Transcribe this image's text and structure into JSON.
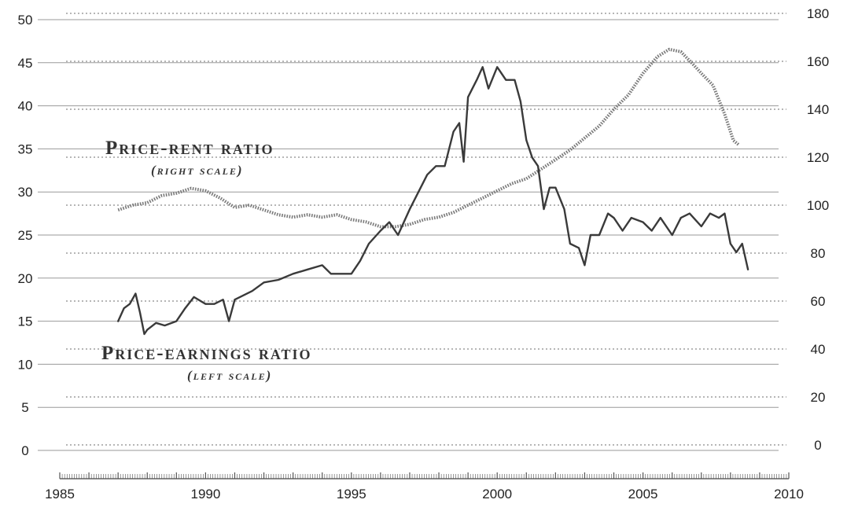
{
  "chart_data": {
    "type": "line",
    "x_axis": {
      "range": [
        1985,
        2010
      ],
      "tick_labels": [
        "1985",
        "1990",
        "1995",
        "2000",
        "2005",
        "2010"
      ]
    },
    "left_axis": {
      "range": [
        0,
        50
      ],
      "tick_labels": [
        "0",
        "5",
        "10",
        "15",
        "20",
        "25",
        "30",
        "35",
        "40",
        "45",
        "50"
      ]
    },
    "right_axis": {
      "range": [
        0,
        180
      ],
      "tick_labels": [
        "0",
        "20",
        "40",
        "60",
        "80",
        "100",
        "120",
        "140",
        "160",
        "180"
      ]
    },
    "grid": true,
    "annotations": [
      {
        "id": "price-rent",
        "title": "Price-rent ratio",
        "subtitle": "(right scale)"
      },
      {
        "id": "price-earnings",
        "title": "Price-earnings ratio",
        "subtitle": "(left scale)"
      }
    ],
    "series": [
      {
        "name": "Price-rent ratio",
        "axis": "right",
        "style": "dotted",
        "color": "#7a7a7a",
        "x": [
          1987.0,
          1987.5,
          1988.0,
          1988.5,
          1989.0,
          1989.5,
          1990.0,
          1990.5,
          1991.0,
          1991.5,
          1992.0,
          1992.5,
          1993.0,
          1993.5,
          1994.0,
          1994.5,
          1995.0,
          1995.5,
          1996.0,
          1996.5,
          1997.0,
          1997.5,
          1998.0,
          1998.5,
          1999.0,
          1999.5,
          2000.0,
          2000.5,
          2001.0,
          2001.5,
          2002.0,
          2002.5,
          2003.0,
          2003.5,
          2004.0,
          2004.5,
          2005.0,
          2005.5,
          2005.9,
          2006.3,
          2006.7,
          2007.0,
          2007.4,
          2007.8,
          2008.1,
          2008.3
        ],
        "values": [
          98,
          100,
          101,
          104,
          105,
          107,
          106,
          103,
          99,
          100,
          98,
          96,
          95,
          96,
          95,
          96,
          94,
          93,
          91,
          91,
          92,
          94,
          95,
          97,
          100,
          103,
          106,
          109,
          111,
          115,
          119,
          123,
          128,
          133,
          140,
          146,
          155,
          162,
          165,
          164,
          159,
          155,
          150,
          138,
          127,
          125
        ]
      },
      {
        "name": "Price-earnings ratio",
        "axis": "left",
        "style": "solid",
        "color": "#3a3a3a",
        "x": [
          1987.0,
          1987.2,
          1987.4,
          1987.6,
          1987.75,
          1987.9,
          1988.0,
          1988.3,
          1988.6,
          1989.0,
          1989.3,
          1989.6,
          1990.0,
          1990.3,
          1990.6,
          1990.8,
          1991.0,
          1991.3,
          1991.6,
          1992.0,
          1992.5,
          1993.0,
          1993.5,
          1994.0,
          1994.3,
          1994.6,
          1995.0,
          1995.3,
          1995.6,
          1996.0,
          1996.3,
          1996.6,
          1997.0,
          1997.3,
          1997.6,
          1997.9,
          1998.2,
          1998.5,
          1998.7,
          1998.85,
          1999.0,
          1999.3,
          1999.5,
          1999.7,
          2000.0,
          2000.3,
          2000.6,
          2000.8,
          2001.0,
          2001.2,
          2001.4,
          2001.6,
          2001.8,
          2002.0,
          2002.3,
          2002.5,
          2002.8,
          2003.0,
          2003.2,
          2003.5,
          2003.8,
          2004.0,
          2004.3,
          2004.6,
          2005.0,
          2005.3,
          2005.6,
          2006.0,
          2006.3,
          2006.6,
          2007.0,
          2007.3,
          2007.6,
          2007.8,
          2008.0,
          2008.2,
          2008.4,
          2008.6
        ],
        "values": [
          15.0,
          16.5,
          17.0,
          18.2,
          16.0,
          13.5,
          14.0,
          14.8,
          14.5,
          15.0,
          16.5,
          17.8,
          17.0,
          17.0,
          17.5,
          15.0,
          17.5,
          18.0,
          18.5,
          19.5,
          19.8,
          20.5,
          21.0,
          21.5,
          20.5,
          20.5,
          20.5,
          22.0,
          24.0,
          25.5,
          26.5,
          25.0,
          28.0,
          30.0,
          32.0,
          33.0,
          33.0,
          37.0,
          38.0,
          33.5,
          41.0,
          43.0,
          44.5,
          42.0,
          44.5,
          43.0,
          43.0,
          40.5,
          36.0,
          34.0,
          33.0,
          28.0,
          30.5,
          30.5,
          28.0,
          24.0,
          23.5,
          21.5,
          25.0,
          25.0,
          27.5,
          27.0,
          25.5,
          27.0,
          26.5,
          25.5,
          27.0,
          25.0,
          27.0,
          27.5,
          26.0,
          27.5,
          27.0,
          27.5,
          24.0,
          23.0,
          24.0,
          21.0
        ]
      }
    ]
  }
}
